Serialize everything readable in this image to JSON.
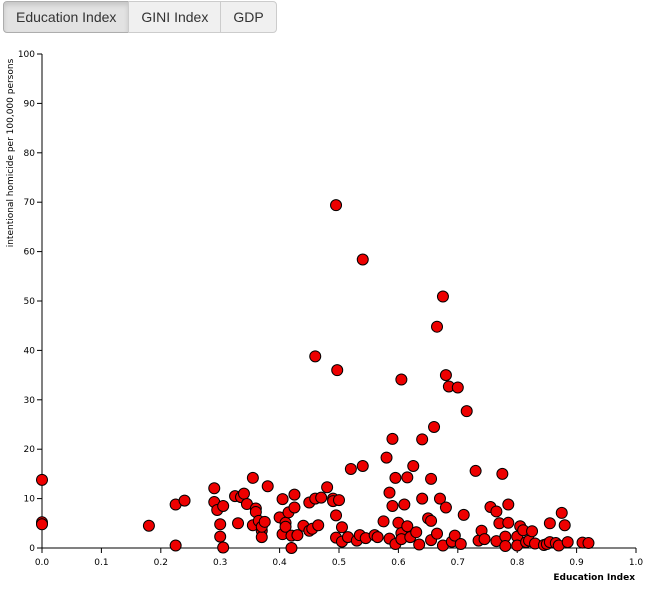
{
  "buttons": [
    {
      "label": "Education Index",
      "active": true
    },
    {
      "label": "GINI Index",
      "active": false
    },
    {
      "label": "GDP",
      "active": false
    }
  ],
  "colors": {
    "point_fill": "#ee0000",
    "point_stroke": "#000000",
    "axis": "#000000"
  },
  "chart_data": {
    "type": "scatter",
    "xlabel": "Education Index",
    "ylabel": "intentional homicide per 100,000 persons",
    "xlim": [
      0,
      1
    ],
    "ylim": [
      0,
      100
    ],
    "xticks": [
      "0.0",
      "0.1",
      "0.2",
      "0.3",
      "0.4",
      "0.5",
      "0.6",
      "0.7",
      "0.8",
      "0.9",
      "1.0"
    ],
    "yticks": [
      "0",
      "10",
      "20",
      "30",
      "40",
      "50",
      "60",
      "70",
      "80",
      "90",
      "100"
    ],
    "grid": false,
    "points": [
      [
        0.0,
        13.8
      ],
      [
        0.0,
        5.2
      ],
      [
        0.0,
        4.8
      ],
      [
        0.18,
        4.5
      ],
      [
        0.225,
        0.5
      ],
      [
        0.225,
        8.8
      ],
      [
        0.24,
        9.6
      ],
      [
        0.29,
        12.1
      ],
      [
        0.29,
        9.3
      ],
      [
        0.295,
        7.7
      ],
      [
        0.3,
        2.3
      ],
      [
        0.3,
        4.8
      ],
      [
        0.305,
        0.1
      ],
      [
        0.305,
        8.5
      ],
      [
        0.325,
        10.5
      ],
      [
        0.33,
        5.0
      ],
      [
        0.335,
        10.3
      ],
      [
        0.34,
        11.0
      ],
      [
        0.345,
        8.9
      ],
      [
        0.355,
        4.6
      ],
      [
        0.355,
        14.2
      ],
      [
        0.36,
        8.0
      ],
      [
        0.36,
        7.3
      ],
      [
        0.365,
        5.5
      ],
      [
        0.37,
        3.5
      ],
      [
        0.37,
        2.2
      ],
      [
        0.37,
        4.3
      ],
      [
        0.375,
        5.3
      ],
      [
        0.38,
        12.5
      ],
      [
        0.4,
        6.2
      ],
      [
        0.405,
        9.9
      ],
      [
        0.405,
        2.8
      ],
      [
        0.41,
        5.1
      ],
      [
        0.41,
        4.3
      ],
      [
        0.415,
        7.2
      ],
      [
        0.42,
        0.0
      ],
      [
        0.42,
        2.5
      ],
      [
        0.425,
        10.8
      ],
      [
        0.425,
        8.2
      ],
      [
        0.43,
        2.6
      ],
      [
        0.44,
        4.5
      ],
      [
        0.45,
        3.5
      ],
      [
        0.45,
        9.2
      ],
      [
        0.455,
        3.9
      ],
      [
        0.46,
        38.8
      ],
      [
        0.46,
        10.0
      ],
      [
        0.465,
        4.6
      ],
      [
        0.47,
        10.2
      ],
      [
        0.48,
        12.3
      ],
      [
        0.49,
        10.0
      ],
      [
        0.49,
        9.5
      ],
      [
        0.495,
        69.4
      ],
      [
        0.495,
        2.1
      ],
      [
        0.495,
        6.6
      ],
      [
        0.497,
        36.0
      ],
      [
        0.5,
        9.7
      ],
      [
        0.505,
        4.2
      ],
      [
        0.505,
        1.3
      ],
      [
        0.515,
        2.2
      ],
      [
        0.52,
        16.0
      ],
      [
        0.53,
        1.5
      ],
      [
        0.535,
        2.6
      ],
      [
        0.54,
        58.4
      ],
      [
        0.54,
        16.6
      ],
      [
        0.545,
        2.0
      ],
      [
        0.56,
        2.6
      ],
      [
        0.565,
        2.2
      ],
      [
        0.575,
        5.4
      ],
      [
        0.58,
        18.3
      ],
      [
        0.585,
        11.2
      ],
      [
        0.585,
        1.9
      ],
      [
        0.59,
        22.1
      ],
      [
        0.59,
        8.5
      ],
      [
        0.595,
        0.8
      ],
      [
        0.595,
        14.2
      ],
      [
        0.6,
        5.1
      ],
      [
        0.605,
        3.0
      ],
      [
        0.605,
        1.8
      ],
      [
        0.605,
        34.1
      ],
      [
        0.61,
        8.8
      ],
      [
        0.615,
        14.3
      ],
      [
        0.615,
        4.4
      ],
      [
        0.62,
        2.2
      ],
      [
        0.625,
        16.6
      ],
      [
        0.63,
        3.2
      ],
      [
        0.635,
        0.7
      ],
      [
        0.64,
        10.0
      ],
      [
        0.64,
        22.0
      ],
      [
        0.65,
        6.0
      ],
      [
        0.655,
        1.6
      ],
      [
        0.655,
        5.5
      ],
      [
        0.655,
        14.0
      ],
      [
        0.66,
        24.5
      ],
      [
        0.665,
        44.8
      ],
      [
        0.665,
        2.9
      ],
      [
        0.67,
        10.0
      ],
      [
        0.675,
        50.9
      ],
      [
        0.675,
        0.5
      ],
      [
        0.68,
        8.2
      ],
      [
        0.68,
        35.0
      ],
      [
        0.685,
        32.7
      ],
      [
        0.69,
        1.3
      ],
      [
        0.695,
        2.5
      ],
      [
        0.7,
        32.5
      ],
      [
        0.705,
        0.8
      ],
      [
        0.71,
        6.7
      ],
      [
        0.715,
        27.7
      ],
      [
        0.73,
        15.6
      ],
      [
        0.735,
        1.5
      ],
      [
        0.74,
        3.5
      ],
      [
        0.745,
        1.8
      ],
      [
        0.755,
        8.3
      ],
      [
        0.765,
        7.4
      ],
      [
        0.765,
        1.4
      ],
      [
        0.77,
        5.0
      ],
      [
        0.775,
        15.0
      ],
      [
        0.78,
        2.3
      ],
      [
        0.78,
        0.4
      ],
      [
        0.785,
        8.8
      ],
      [
        0.785,
        5.1
      ],
      [
        0.8,
        2.3
      ],
      [
        0.8,
        0.5
      ],
      [
        0.805,
        4.4
      ],
      [
        0.81,
        3.6
      ],
      [
        0.815,
        1.2
      ],
      [
        0.82,
        1.5
      ],
      [
        0.825,
        3.4
      ],
      [
        0.83,
        0.9
      ],
      [
        0.845,
        0.6
      ],
      [
        0.85,
        0.8
      ],
      [
        0.855,
        1.2
      ],
      [
        0.855,
        5.0
      ],
      [
        0.865,
        1.0
      ],
      [
        0.87,
        0.5
      ],
      [
        0.875,
        7.1
      ],
      [
        0.88,
        4.6
      ],
      [
        0.885,
        1.2
      ],
      [
        0.91,
        1.1
      ],
      [
        0.92,
        1.0
      ]
    ]
  }
}
